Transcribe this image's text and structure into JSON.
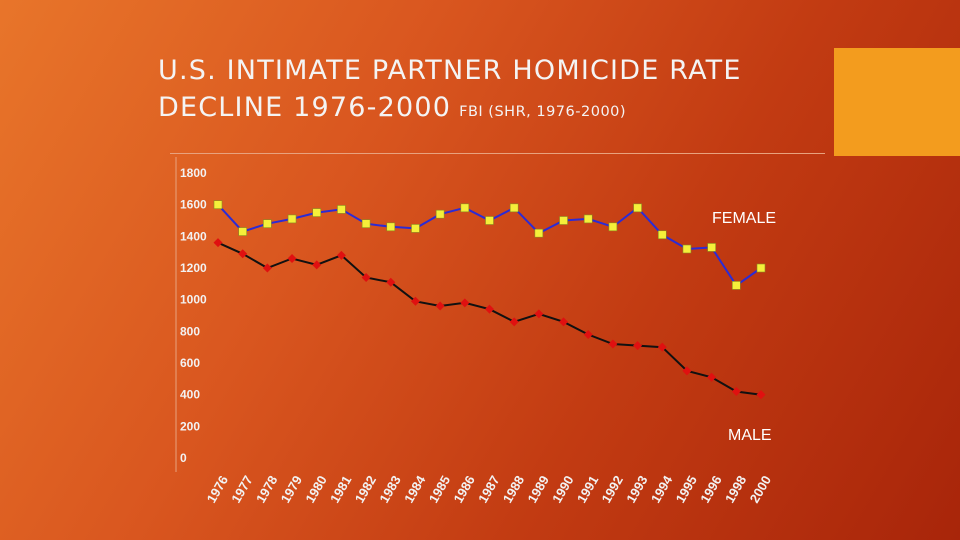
{
  "slide": {
    "title_line1": "U.S. INTIMATE PARTNER HOMICIDE RATE",
    "title_line2": "DECLINE 1976-2000",
    "source": "FBI (SHR, 1976-2000)",
    "background_colors": [
      "#e8752a",
      "#a8250a"
    ],
    "accent_color": "#f39c1e"
  },
  "chart_data": {
    "type": "line",
    "title": "",
    "xlabel": "",
    "ylabel": "",
    "ylim": [
      0,
      1800
    ],
    "yticks": [
      0,
      200,
      400,
      600,
      800,
      1000,
      1200,
      1400,
      1600,
      1800
    ],
    "grid": false,
    "legend": "labels placed at right end of lines",
    "x": [
      "1976",
      "1977",
      "1978",
      "1979",
      "1980",
      "1981",
      "1982",
      "1983",
      "1984",
      "1985",
      "1986",
      "1987",
      "1988",
      "1989",
      "1990",
      "1991",
      "1992",
      "1993",
      "1994",
      "1995",
      "1996",
      "1998",
      "2000"
    ],
    "series": [
      {
        "name": "FEMALE",
        "line_color": "#2b2bd6",
        "marker": "square",
        "marker_color": "#f5ef3a",
        "values": [
          1600,
          1430,
          1480,
          1510,
          1550,
          1570,
          1480,
          1460,
          1450,
          1540,
          1580,
          1500,
          1580,
          1420,
          1500,
          1510,
          1460,
          1580,
          1410,
          1320,
          1330,
          1090,
          1200
        ]
      },
      {
        "name": "MALE",
        "line_color": "#111111",
        "marker": "diamond",
        "marker_color": "#e01010",
        "values": [
          1360,
          1290,
          1200,
          1260,
          1220,
          1280,
          1140,
          1110,
          990,
          960,
          980,
          940,
          860,
          910,
          860,
          780,
          720,
          710,
          700,
          550,
          510,
          420,
          400
        ]
      }
    ]
  }
}
